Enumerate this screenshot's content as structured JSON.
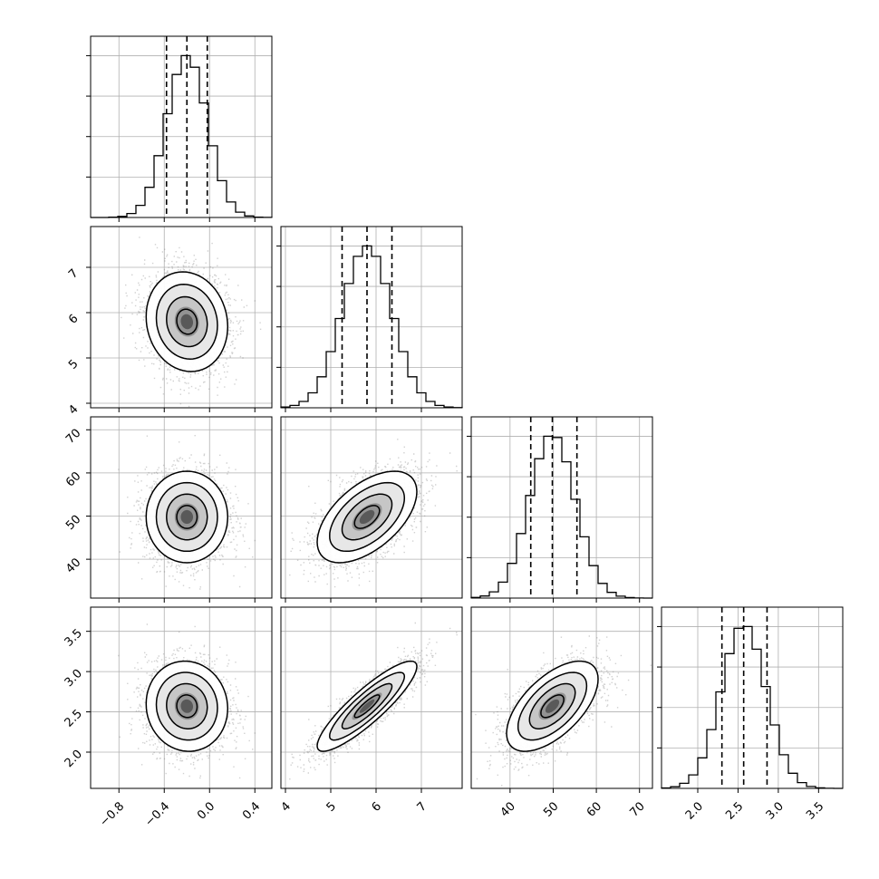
{
  "chart_data": {
    "type": "scatter",
    "subtype": "corner-plot",
    "dimensions": 4,
    "parameters": [
      {
        "range": [
          -1.05,
          0.55
        ],
        "ticks": [
          -0.8,
          -0.4,
          0.0,
          0.4
        ],
        "tick_labels": [
          "−0.8",
          "−0.4",
          "0.0",
          "0.4"
        ],
        "quantiles": [
          -0.38,
          -0.2,
          -0.02
        ],
        "median": -0.2,
        "std": 0.18
      },
      {
        "range": [
          3.9,
          7.9
        ],
        "ticks": [
          4,
          5,
          6,
          7
        ],
        "tick_labels": [
          "4",
          "5",
          "6",
          "7"
        ],
        "quantiles": [
          5.25,
          5.8,
          6.35
        ],
        "median": 5.8,
        "std": 0.55
      },
      {
        "range": [
          31,
          73
        ],
        "ticks": [
          40,
          50,
          60,
          70
        ],
        "tick_labels": [
          "40",
          "50",
          "60",
          "70"
        ],
        "quantiles": [
          44.8,
          49.8,
          55.5
        ],
        "median": 49.8,
        "std": 5.3
      },
      {
        "range": [
          1.55,
          3.8
        ],
        "ticks": [
          2.0,
          2.5,
          3.0,
          3.5
        ],
        "tick_labels": [
          "2.0",
          "2.5",
          "3.0",
          "3.5"
        ],
        "quantiles": [
          2.3,
          2.57,
          2.86
        ],
        "median": 2.57,
        "std": 0.28
      }
    ],
    "correlations": [
      {
        "i": 1,
        "j": 0,
        "rho": -0.1
      },
      {
        "i": 2,
        "j": 0,
        "rho": 0.0
      },
      {
        "i": 2,
        "j": 1,
        "rho": 0.55
      },
      {
        "i": 3,
        "j": 0,
        "rho": -0.05
      },
      {
        "i": 3,
        "j": 1,
        "rho": 0.88
      },
      {
        "i": 3,
        "j": 2,
        "rho": 0.6
      }
    ],
    "contour_levels_sigma": [
      0.5,
      1.0,
      1.5,
      2.0
    ],
    "histogram_bins": 20,
    "grid": true,
    "legend": "none",
    "title": "",
    "xlabel": "",
    "ylabel": ""
  }
}
